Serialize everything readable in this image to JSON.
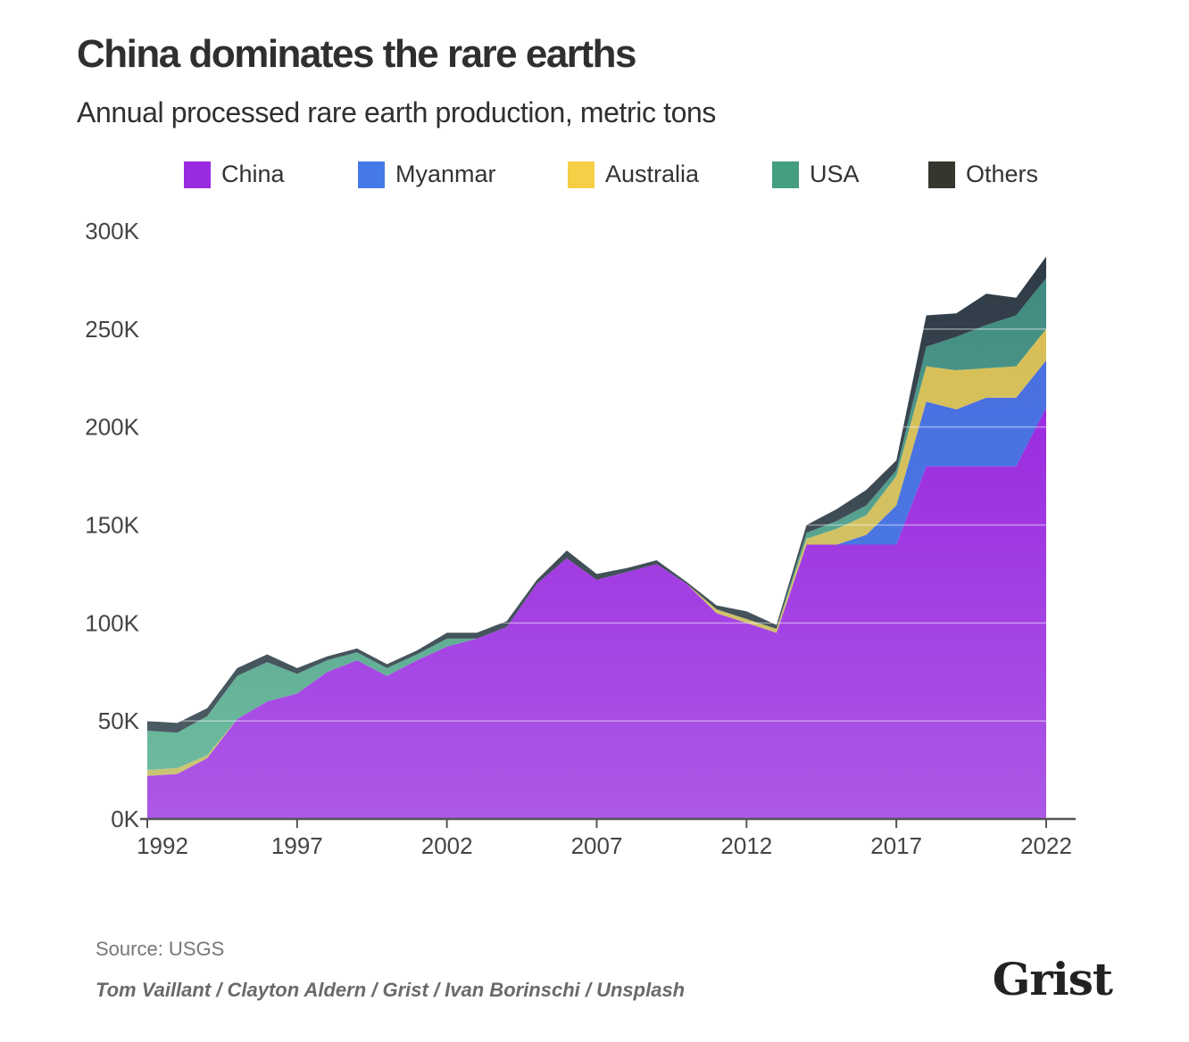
{
  "header": {
    "title": "China dominates the rare earths",
    "subtitle": "Annual processed rare earth production, metric tons"
  },
  "footer": {
    "source": "Source: USGS",
    "credit": "Tom Vaillant / Clayton Aldern / Grist / Ivan Borinschi / Unsplash",
    "logo": "Grist"
  },
  "chart_data": {
    "type": "area",
    "stacked": true,
    "title": "China dominates the rare earths",
    "subtitle": "Annual processed rare earth production, metric tons",
    "xlabel": "",
    "ylabel": "",
    "x": [
      1992,
      1993,
      1994,
      1995,
      1996,
      1997,
      1998,
      1999,
      2000,
      2001,
      2002,
      2003,
      2004,
      2005,
      2006,
      2007,
      2008,
      2009,
      2010,
      2011,
      2012,
      2013,
      2014,
      2015,
      2016,
      2017,
      2018,
      2019,
      2020,
      2021,
      2022
    ],
    "xlim": [
      1992,
      2022
    ],
    "ylim": [
      0,
      300000
    ],
    "x_ticks": [
      1992,
      1997,
      2002,
      2007,
      2012,
      2017,
      2022
    ],
    "y_ticks": [
      0,
      50000,
      100000,
      150000,
      200000,
      250000,
      300000
    ],
    "y_tick_labels": [
      "0K",
      "50K",
      "100K",
      "150K",
      "200K",
      "250K",
      "300K"
    ],
    "grid": true,
    "legend_position": "top",
    "series": [
      {
        "name": "China",
        "color": "#9b2be0",
        "values": [
          22000,
          23000,
          31000,
          51000,
          60000,
          64000,
          75000,
          81000,
          73000,
          81000,
          88000,
          92000,
          98000,
          120000,
          133000,
          122000,
          126000,
          130000,
          120000,
          105000,
          100000,
          95000,
          140000,
          140000,
          140000,
          140000,
          180000,
          180000,
          180000,
          180000,
          210000
        ]
      },
      {
        "name": "Myanmar",
        "color": "#4679e8",
        "values": [
          0,
          0,
          0,
          0,
          0,
          0,
          0,
          0,
          0,
          0,
          0,
          0,
          0,
          0,
          0,
          0,
          0,
          0,
          0,
          0,
          0,
          0,
          0,
          0,
          5000,
          20000,
          33000,
          29000,
          35000,
          35000,
          24000
        ]
      },
      {
        "name": "Australia",
        "color": "#f5cf45",
        "values": [
          3000,
          3000,
          1500,
          0,
          0,
          0,
          0,
          0,
          0,
          0,
          0,
          0,
          0,
          0,
          0,
          0,
          0,
          0,
          0,
          2000,
          2000,
          2000,
          3000,
          8000,
          10000,
          15000,
          18000,
          20000,
          15000,
          16000,
          16000
        ]
      },
      {
        "name": "USA",
        "color": "#449e82",
        "values": [
          20000,
          18000,
          20000,
          22000,
          20000,
          10000,
          6000,
          4000,
          4000,
          3000,
          4000,
          0,
          0,
          0,
          0,
          0,
          0,
          0,
          0,
          0,
          0,
          0,
          3000,
          4000,
          5000,
          3000,
          10000,
          17000,
          22000,
          26000,
          26000
        ]
      },
      {
        "name": "Others",
        "color": "#36362f",
        "values": [
          5000,
          5000,
          4000,
          4000,
          4000,
          3000,
          2000,
          2000,
          2000,
          2000,
          3000,
          3000,
          3000,
          2000,
          4000,
          3000,
          2000,
          2000,
          1000,
          2000,
          4000,
          2000,
          4000,
          6000,
          8000,
          5000,
          16000,
          12000,
          16000,
          9000,
          11000
        ]
      }
    ]
  }
}
